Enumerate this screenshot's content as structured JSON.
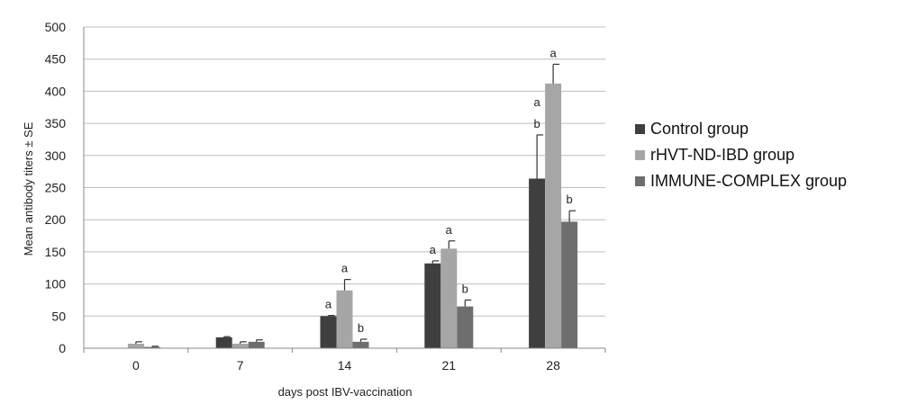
{
  "chart_data": {
    "type": "bar",
    "title": "",
    "xlabel": "days post IBV-vaccination",
    "ylabel": "Mean antibody titers ± SE",
    "ylim": [
      0,
      500
    ],
    "yticks": [
      0,
      50,
      100,
      150,
      200,
      250,
      300,
      350,
      400,
      450,
      500
    ],
    "grid": true,
    "legend_position": "right",
    "categories": [
      "0",
      "7",
      "14",
      "21",
      "28"
    ],
    "series": [
      {
        "name": "Control group",
        "color": "#3f3f3f",
        "values": [
          0,
          17,
          50,
          132,
          264
        ],
        "errors": [
          0,
          1,
          1,
          4,
          68
        ],
        "labels": [
          "",
          "",
          "a",
          "a",
          "a\nb"
        ]
      },
      {
        "name": "rHVT-ND-IBD group",
        "color": "#a6a6a6",
        "values": [
          7,
          7,
          90,
          155,
          412
        ],
        "errors": [
          3,
          3,
          17,
          12,
          30
        ],
        "labels": [
          "",
          "",
          "a",
          "a",
          "a"
        ]
      },
      {
        "name": "IMMUNE-COMPLEX group",
        "color": "#6e6e6e",
        "values": [
          2,
          10,
          10,
          65,
          197
        ],
        "errors": [
          1,
          3,
          4,
          10,
          17
        ],
        "labels": [
          "",
          "",
          "b",
          "b",
          "b"
        ]
      }
    ]
  }
}
